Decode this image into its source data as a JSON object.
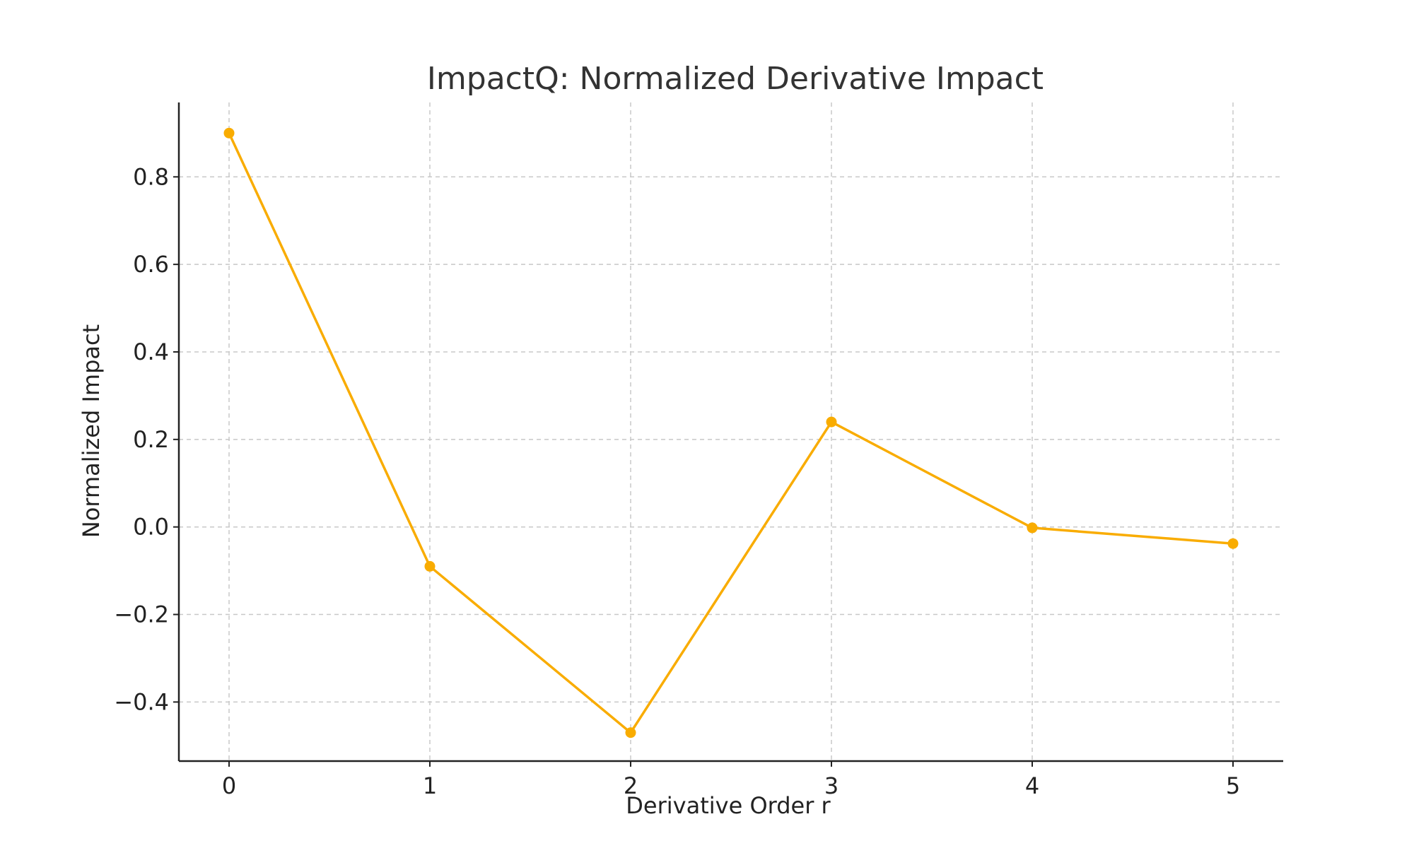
{
  "chart_data": {
    "type": "line",
    "title": "ImpactQ: Normalized Derivative Impact",
    "xlabel": "Derivative Order r",
    "ylabel": "Normalized Impact",
    "x": [
      0,
      1,
      2,
      3,
      4,
      5
    ],
    "x_ticks": [
      "0",
      "1",
      "2",
      "3",
      "4",
      "5"
    ],
    "y_ticks": [
      -0.4,
      -0.2,
      0.0,
      0.2,
      0.4,
      0.6,
      0.8
    ],
    "y_tick_labels": [
      "−0.4",
      "−0.2",
      "0.0",
      "0.2",
      "0.4",
      "0.6",
      "0.8"
    ],
    "xlim": [
      -0.25,
      5.25
    ],
    "ylim": [
      -0.535,
      0.97
    ],
    "grid": true,
    "series": [
      {
        "values": [
          0.9,
          -0.09,
          -0.47,
          0.24,
          -0.002,
          -0.038
        ],
        "color": "#F9AC00"
      }
    ]
  }
}
